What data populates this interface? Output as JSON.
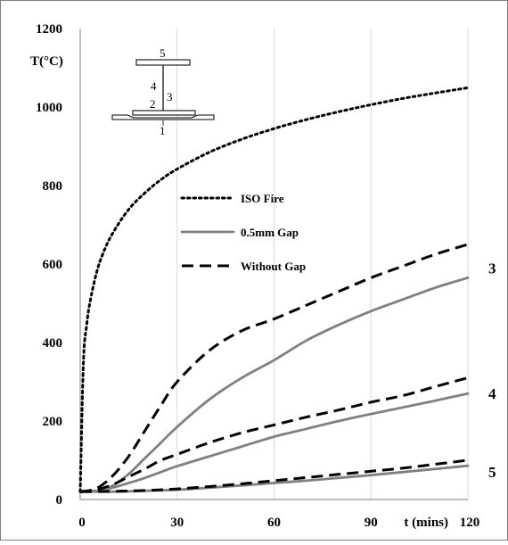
{
  "chart_data": {
    "type": "line",
    "title": "",
    "xlabel": "t (mins)",
    "ylabel": "T(°C)",
    "xlim": [
      0,
      120
    ],
    "ylim": [
      0,
      1200
    ],
    "x_ticks": [
      0,
      30,
      60,
      90,
      120
    ],
    "y_ticks": [
      0,
      200,
      400,
      600,
      800,
      1000,
      1200
    ],
    "grid": "vertical",
    "legend_position": "center-left",
    "legend": [
      {
        "label": "ISO Fire",
        "style": "dotted",
        "color": "#000000"
      },
      {
        "label": "0.5mm Gap",
        "style": "solid",
        "color": "#808080"
      },
      {
        "label": "Without Gap",
        "style": "dashed",
        "color": "#000000"
      }
    ],
    "curve_labels": [
      {
        "text": "3",
        "at_x": 120,
        "at_y": 590
      },
      {
        "text": "4",
        "at_x": 120,
        "at_y": 270
      },
      {
        "text": "5",
        "at_x": 120,
        "at_y": 70
      }
    ],
    "inset": {
      "description": "I-section steel beam cross-section with numbered measurement points",
      "point_labels": [
        "1",
        "2",
        "3",
        "4",
        "5"
      ]
    },
    "series": [
      {
        "name": "ISO Fire",
        "style": "dotted",
        "color": "#000000",
        "x": [
          0,
          1,
          2,
          3,
          5,
          7,
          10,
          15,
          20,
          25,
          30,
          40,
          50,
          60,
          70,
          80,
          90,
          100,
          110,
          120
        ],
        "y": [
          20,
          349,
          445,
          502,
          576,
          626,
          678,
          739,
          781,
          815,
          842,
          885,
          918,
          945,
          968,
          988,
          1006,
          1022,
          1036,
          1049
        ]
      },
      {
        "name": "Without Gap",
        "group": "3",
        "style": "dashed",
        "color": "#000000",
        "x": [
          0,
          5,
          10,
          15,
          20,
          25,
          30,
          40,
          50,
          60,
          70,
          80,
          90,
          100,
          110,
          120
        ],
        "y": [
          20,
          28,
          60,
          110,
          175,
          240,
          300,
          380,
          430,
          460,
          495,
          530,
          565,
          595,
          625,
          650
        ]
      },
      {
        "name": "0.5mm Gap",
        "group": "3",
        "style": "solid",
        "color": "#808080",
        "x": [
          0,
          5,
          10,
          15,
          20,
          25,
          30,
          40,
          50,
          60,
          70,
          80,
          90,
          100,
          110,
          120
        ],
        "y": [
          20,
          22,
          35,
          65,
          105,
          145,
          185,
          255,
          310,
          355,
          405,
          445,
          480,
          510,
          540,
          565
        ]
      },
      {
        "name": "Without Gap",
        "group": "4",
        "style": "dashed",
        "color": "#000000",
        "x": [
          0,
          5,
          10,
          15,
          20,
          25,
          30,
          40,
          50,
          60,
          70,
          80,
          90,
          100,
          110,
          120
        ],
        "y": [
          20,
          25,
          38,
          58,
          78,
          100,
          115,
          145,
          170,
          190,
          210,
          228,
          248,
          265,
          288,
          310
        ]
      },
      {
        "name": "0.5mm Gap",
        "group": "4",
        "style": "solid",
        "color": "#808080",
        "x": [
          0,
          5,
          10,
          15,
          20,
          25,
          30,
          40,
          50,
          60,
          70,
          80,
          90,
          100,
          110,
          120
        ],
        "y": [
          20,
          22,
          30,
          42,
          55,
          70,
          85,
          110,
          135,
          160,
          180,
          200,
          218,
          235,
          252,
          270
        ]
      },
      {
        "name": "Without Gap",
        "group": "5",
        "style": "dashed",
        "color": "#000000",
        "x": [
          0,
          10,
          20,
          30,
          40,
          50,
          60,
          70,
          80,
          90,
          100,
          110,
          120
        ],
        "y": [
          20,
          21,
          23,
          27,
          33,
          40,
          48,
          56,
          64,
          72,
          80,
          90,
          100
        ]
      },
      {
        "name": "0.5mm Gap",
        "group": "5",
        "style": "solid",
        "color": "#808080",
        "x": [
          0,
          10,
          20,
          30,
          40,
          50,
          60,
          70,
          80,
          90,
          100,
          110,
          120
        ],
        "y": [
          20,
          20,
          22,
          25,
          30,
          36,
          42,
          48,
          55,
          62,
          70,
          78,
          86
        ]
      }
    ]
  }
}
